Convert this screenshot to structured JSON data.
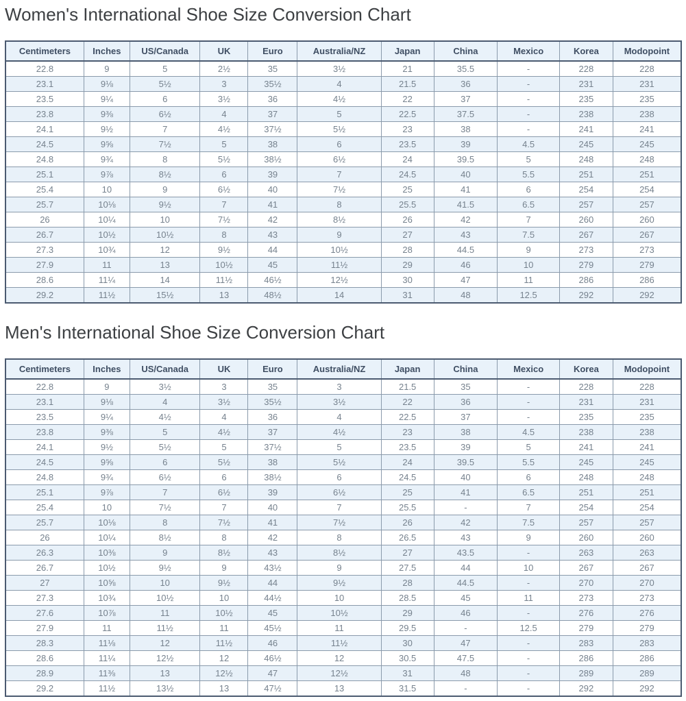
{
  "colors": {
    "header_bg": "#e9f2fa",
    "header_text": "#3f4e63",
    "row_alt_bg": "#e8f1f9",
    "row_bg": "#ffffff",
    "cell_text": "#76828e",
    "border_inner": "#8a9aab",
    "border_outer": "#4b5a70",
    "title_text": "#3d4043",
    "page_bg": "#ffffff"
  },
  "tables": [
    {
      "id": "womens",
      "title": "Women's International Shoe Size Conversion Chart",
      "columns": [
        "Centimeters",
        "Inches",
        "US/Canada",
        "UK",
        "Euro",
        "Australia/NZ",
        "Japan",
        "China",
        "Mexico",
        "Korea",
        "Modopoint"
      ],
      "rows": [
        [
          "22.8",
          "9",
          "5",
          "2½",
          "35",
          "3½",
          "21",
          "35.5",
          "-",
          "228",
          "228"
        ],
        [
          "23.1",
          "9⅛",
          "5½",
          "3",
          "35½",
          "4",
          "21.5",
          "36",
          "-",
          "231",
          "231"
        ],
        [
          "23.5",
          "9¼",
          "6",
          "3½",
          "36",
          "4½",
          "22",
          "37",
          "-",
          "235",
          "235"
        ],
        [
          "23.8",
          "9⅜",
          "6½",
          "4",
          "37",
          "5",
          "22.5",
          "37.5",
          "-",
          "238",
          "238"
        ],
        [
          "24.1",
          "9½",
          "7",
          "4½",
          "37½",
          "5½",
          "23",
          "38",
          "-",
          "241",
          "241"
        ],
        [
          "24.5",
          "9⅝",
          "7½",
          "5",
          "38",
          "6",
          "23.5",
          "39",
          "4.5",
          "245",
          "245"
        ],
        [
          "24.8",
          "9¾",
          "8",
          "5½",
          "38½",
          "6½",
          "24",
          "39.5",
          "5",
          "248",
          "248"
        ],
        [
          "25.1",
          "9⅞",
          "8½",
          "6",
          "39",
          "7",
          "24.5",
          "40",
          "5.5",
          "251",
          "251"
        ],
        [
          "25.4",
          "10",
          "9",
          "6½",
          "40",
          "7½",
          "25",
          "41",
          "6",
          "254",
          "254"
        ],
        [
          "25.7",
          "10⅛",
          "9½",
          "7",
          "41",
          "8",
          "25.5",
          "41.5",
          "6.5",
          "257",
          "257"
        ],
        [
          "26",
          "10¼",
          "10",
          "7½",
          "42",
          "8½",
          "26",
          "42",
          "7",
          "260",
          "260"
        ],
        [
          "26.7",
          "10½",
          "10½",
          "8",
          "43",
          "9",
          "27",
          "43",
          "7.5",
          "267",
          "267"
        ],
        [
          "27.3",
          "10¾",
          "12",
          "9½",
          "44",
          "10½",
          "28",
          "44.5",
          "9",
          "273",
          "273"
        ],
        [
          "27.9",
          "11",
          "13",
          "10½",
          "45",
          "11½",
          "29",
          "46",
          "10",
          "279",
          "279"
        ],
        [
          "28.6",
          "11¼",
          "14",
          "11½",
          "46½",
          "12½",
          "30",
          "47",
          "11",
          "286",
          "286"
        ],
        [
          "29.2",
          "11½",
          "15½",
          "13",
          "48½",
          "14",
          "31",
          "48",
          "12.5",
          "292",
          "292"
        ]
      ]
    },
    {
      "id": "mens",
      "title": "Men's International Shoe Size Conversion Chart",
      "columns": [
        "Centimeters",
        "Inches",
        "US/Canada",
        "UK",
        "Euro",
        "Australia/NZ",
        "Japan",
        "China",
        "Mexico",
        "Korea",
        "Modopoint"
      ],
      "rows": [
        [
          "22.8",
          "9",
          "3½",
          "3",
          "35",
          "3",
          "21.5",
          "35",
          "-",
          "228",
          "228"
        ],
        [
          "23.1",
          "9⅛",
          "4",
          "3½",
          "35½",
          "3½",
          "22",
          "36",
          "-",
          "231",
          "231"
        ],
        [
          "23.5",
          "9¼",
          "4½",
          "4",
          "36",
          "4",
          "22.5",
          "37",
          "-",
          "235",
          "235"
        ],
        [
          "23.8",
          "9⅜",
          "5",
          "4½",
          "37",
          "4½",
          "23",
          "38",
          "4.5",
          "238",
          "238"
        ],
        [
          "24.1",
          "9½",
          "5½",
          "5",
          "37½",
          "5",
          "23.5",
          "39",
          "5",
          "241",
          "241"
        ],
        [
          "24.5",
          "9⅝",
          "6",
          "5½",
          "38",
          "5½",
          "24",
          "39.5",
          "5.5",
          "245",
          "245"
        ],
        [
          "24.8",
          "9¾",
          "6½",
          "6",
          "38½",
          "6",
          "24.5",
          "40",
          "6",
          "248",
          "248"
        ],
        [
          "25.1",
          "9⅞",
          "7",
          "6½",
          "39",
          "6½",
          "25",
          "41",
          "6.5",
          "251",
          "251"
        ],
        [
          "25.4",
          "10",
          "7½",
          "7",
          "40",
          "7",
          "25.5",
          "-",
          "7",
          "254",
          "254"
        ],
        [
          "25.7",
          "10⅛",
          "8",
          "7½",
          "41",
          "7½",
          "26",
          "42",
          "7.5",
          "257",
          "257"
        ],
        [
          "26",
          "10¼",
          "8½",
          "8",
          "42",
          "8",
          "26.5",
          "43",
          "9",
          "260",
          "260"
        ],
        [
          "26.3",
          "10⅜",
          "9",
          "8½",
          "43",
          "8½",
          "27",
          "43.5",
          "-",
          "263",
          "263"
        ],
        [
          "26.7",
          "10½",
          "9½",
          "9",
          "43½",
          "9",
          "27.5",
          "44",
          "10",
          "267",
          "267"
        ],
        [
          "27",
          "10⅝",
          "10",
          "9½",
          "44",
          "9½",
          "28",
          "44.5",
          "-",
          "270",
          "270"
        ],
        [
          "27.3",
          "10¾",
          "10½",
          "10",
          "44½",
          "10",
          "28.5",
          "45",
          "11",
          "273",
          "273"
        ],
        [
          "27.6",
          "10⅞",
          "11",
          "10½",
          "45",
          "10½",
          "29",
          "46",
          "-",
          "276",
          "276"
        ],
        [
          "27.9",
          "11",
          "11½",
          "11",
          "45½",
          "11",
          "29.5",
          "-",
          "12.5",
          "279",
          "279"
        ],
        [
          "28.3",
          "11⅛",
          "12",
          "11½",
          "46",
          "11½",
          "30",
          "47",
          "-",
          "283",
          "283"
        ],
        [
          "28.6",
          "11¼",
          "12½",
          "12",
          "46½",
          "12",
          "30.5",
          "47.5",
          "-",
          "286",
          "286"
        ],
        [
          "28.9",
          "11⅜",
          "13",
          "12½",
          "47",
          "12½",
          "31",
          "48",
          "-",
          "289",
          "289"
        ],
        [
          "29.2",
          "11½",
          "13½",
          "13",
          "47½",
          "13",
          "31.5",
          "-",
          "-",
          "292",
          "292"
        ]
      ]
    }
  ]
}
